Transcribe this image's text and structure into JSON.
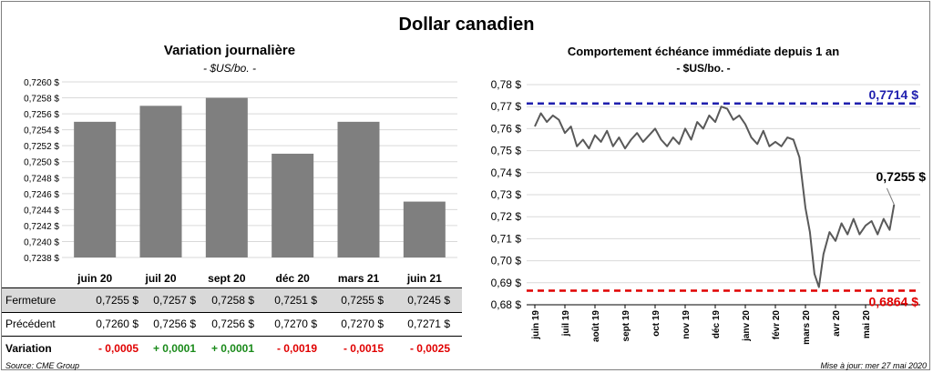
{
  "main_title": "Dollar canadien",
  "left_chart": {
    "title": "Variation  journalière",
    "subtitle": "- $US/bo. -"
  },
  "right_chart": {
    "title": "Comportement échéance immédiate depuis 1 an",
    "subtitle": "- $US/bo. -"
  },
  "table": {
    "rows": [
      {
        "label": "Fermeture",
        "values": [
          "0,7255  $",
          "0,7257  $",
          "0,7258  $",
          "0,7251  $",
          "0,7255  $",
          "0,7245  $"
        ]
      },
      {
        "label": "Précédent",
        "values": [
          "0,7260  $",
          "0,7256  $",
          "0,7256  $",
          "0,7270  $",
          "0,7270  $",
          "0,7271  $"
        ]
      },
      {
        "label": "Variation",
        "values": [
          "- 0,0005",
          "+ 0,0001",
          "+ 0,0001",
          "- 0,0019",
          "- 0,0015",
          "- 0,0025"
        ],
        "signs": [
          "neg",
          "pos",
          "pos",
          "neg",
          "neg",
          "neg"
        ]
      }
    ]
  },
  "footer": {
    "source": "Source: CME Group",
    "updated": "Mise à jour: mer 27 mai 2020"
  },
  "colors": {
    "bar": "#7f7f7f",
    "line": "#595959",
    "high_line": "#1f1fae",
    "low_line": "#e00000",
    "negative": "#e00000",
    "positive": "#1a8a1a"
  },
  "chart_data": [
    {
      "type": "bar",
      "title": "Variation  journalière",
      "subtitle": "- $US/bo. -",
      "categories": [
        "juin 20",
        "juil 20",
        "sept 20",
        "déc 20",
        "mars 21",
        "juin 21"
      ],
      "values": [
        0.7255,
        0.7257,
        0.7258,
        0.7251,
        0.7255,
        0.7245
      ],
      "ylim": [
        0.7238,
        0.726
      ],
      "yticks": [
        "0,7238 $",
        "0,7240 $",
        "0,7242 $",
        "0,7244 $",
        "0,7246 $",
        "0,7248 $",
        "0,7250 $",
        "0,7252 $",
        "0,7254 $",
        "0,7256 $",
        "0,7258 $",
        "0,7260 $"
      ],
      "grid": true
    },
    {
      "type": "line",
      "title": "Comportement échéance immédiate depuis 1 an",
      "subtitle": "- $US/bo. -",
      "xticks": [
        "juin 19",
        "juil 19",
        "août 19",
        "sept 19",
        "oct 19",
        "nov 19",
        "déc 19",
        "janv 20",
        "févr 20",
        "mars 20",
        "avr 20",
        "mai 20"
      ],
      "yticks": [
        "0,68 $",
        "0,69 $",
        "0,70 $",
        "0,71 $",
        "0,72 $",
        "0,73 $",
        "0,74 $",
        "0,75 $",
        "0,76 $",
        "0,77 $",
        "0,78 $"
      ],
      "ylim": [
        0.68,
        0.78
      ],
      "x_month_index": [
        0,
        0.2,
        0.4,
        0.6,
        0.8,
        1.0,
        1.2,
        1.4,
        1.6,
        1.8,
        2.0,
        2.2,
        2.4,
        2.6,
        2.8,
        3.0,
        3.2,
        3.4,
        3.6,
        3.8,
        4.0,
        4.2,
        4.4,
        4.6,
        4.8,
        5.0,
        5.2,
        5.4,
        5.6,
        5.8,
        6.0,
        6.2,
        6.4,
        6.6,
        6.8,
        7.0,
        7.2,
        7.4,
        7.6,
        7.8,
        8.0,
        8.2,
        8.4,
        8.6,
        8.8,
        9.0,
        9.15,
        9.3,
        9.45,
        9.6,
        9.8,
        10.0,
        10.2,
        10.4,
        10.6,
        10.8,
        11.0,
        11.2,
        11.4,
        11.6,
        11.8,
        11.95
      ],
      "values": [
        0.761,
        0.767,
        0.763,
        0.766,
        0.764,
        0.758,
        0.761,
        0.752,
        0.755,
        0.751,
        0.757,
        0.754,
        0.759,
        0.752,
        0.756,
        0.751,
        0.755,
        0.758,
        0.754,
        0.757,
        0.76,
        0.755,
        0.752,
        0.756,
        0.753,
        0.76,
        0.755,
        0.763,
        0.76,
        0.766,
        0.763,
        0.77,
        0.769,
        0.764,
        0.766,
        0.762,
        0.756,
        0.753,
        0.759,
        0.752,
        0.754,
        0.752,
        0.756,
        0.755,
        0.747,
        0.724,
        0.713,
        0.694,
        0.688,
        0.703,
        0.713,
        0.709,
        0.717,
        0.712,
        0.719,
        0.712,
        0.716,
        0.718,
        0.712,
        0.719,
        0.714,
        0.7255
      ],
      "reference_lines": [
        {
          "name": "high",
          "value": 0.7714,
          "label": "0,7714  $"
        },
        {
          "name": "low",
          "value": 0.6864,
          "label": "0,6864  $"
        }
      ],
      "last_value": {
        "value": 0.7255,
        "label": "0,7255 $"
      },
      "grid": true
    }
  ]
}
